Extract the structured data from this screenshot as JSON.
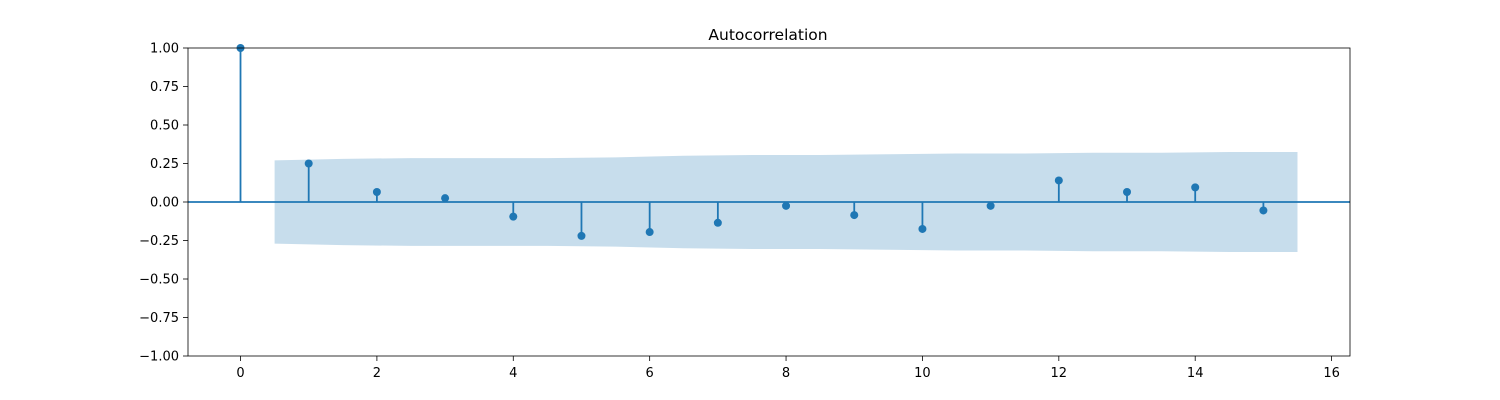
{
  "chart_data": {
    "type": "stem",
    "title": "Autocorrelation",
    "xlabel": "",
    "ylabel": "",
    "xlim": [
      -0.77,
      16.27
    ],
    "ylim": [
      -1.0,
      1.0
    ],
    "xticks": [
      0,
      2,
      4,
      6,
      8,
      10,
      12,
      14,
      16
    ],
    "xtick_labels": [
      "0",
      "2",
      "4",
      "6",
      "8",
      "10",
      "12",
      "14",
      "16"
    ],
    "yticks": [
      -1.0,
      -0.75,
      -0.5,
      -0.25,
      0.0,
      0.25,
      0.5,
      0.75,
      1.0
    ],
    "ytick_labels": [
      "−1.00",
      "−0.75",
      "−0.50",
      "−0.25",
      "0.00",
      "0.25",
      "0.50",
      "0.75",
      "1.00"
    ],
    "grid": false,
    "lags": [
      0,
      1,
      2,
      3,
      4,
      5,
      6,
      7,
      8,
      9,
      10,
      11,
      12,
      13,
      14,
      15
    ],
    "values": [
      1.0,
      0.25,
      0.065,
      0.025,
      -0.095,
      -0.22,
      -0.195,
      -0.135,
      -0.025,
      -0.085,
      -0.175,
      -0.025,
      0.14,
      0.065,
      0.095,
      -0.055
    ],
    "confidence_band": {
      "x": [
        0.5,
        1.5,
        2.5,
        3.5,
        4.5,
        5.5,
        6.5,
        7.5,
        8.5,
        9.5,
        10.5,
        11.5,
        12.5,
        13.5,
        14.5,
        15.5
      ],
      "upper": [
        0.27,
        0.28,
        0.285,
        0.285,
        0.285,
        0.29,
        0.3,
        0.305,
        0.305,
        0.31,
        0.315,
        0.315,
        0.32,
        0.32,
        0.325,
        0.325
      ],
      "lower": [
        -0.27,
        -0.28,
        -0.285,
        -0.285,
        -0.285,
        -0.29,
        -0.3,
        -0.305,
        -0.305,
        -0.31,
        -0.315,
        -0.315,
        -0.32,
        -0.32,
        -0.325,
        -0.325
      ]
    },
    "colors": {
      "stem": "#1f77b4",
      "band": "#1f77b4",
      "band_opacity": 0.25,
      "zero_line": "#1f77b4"
    }
  }
}
